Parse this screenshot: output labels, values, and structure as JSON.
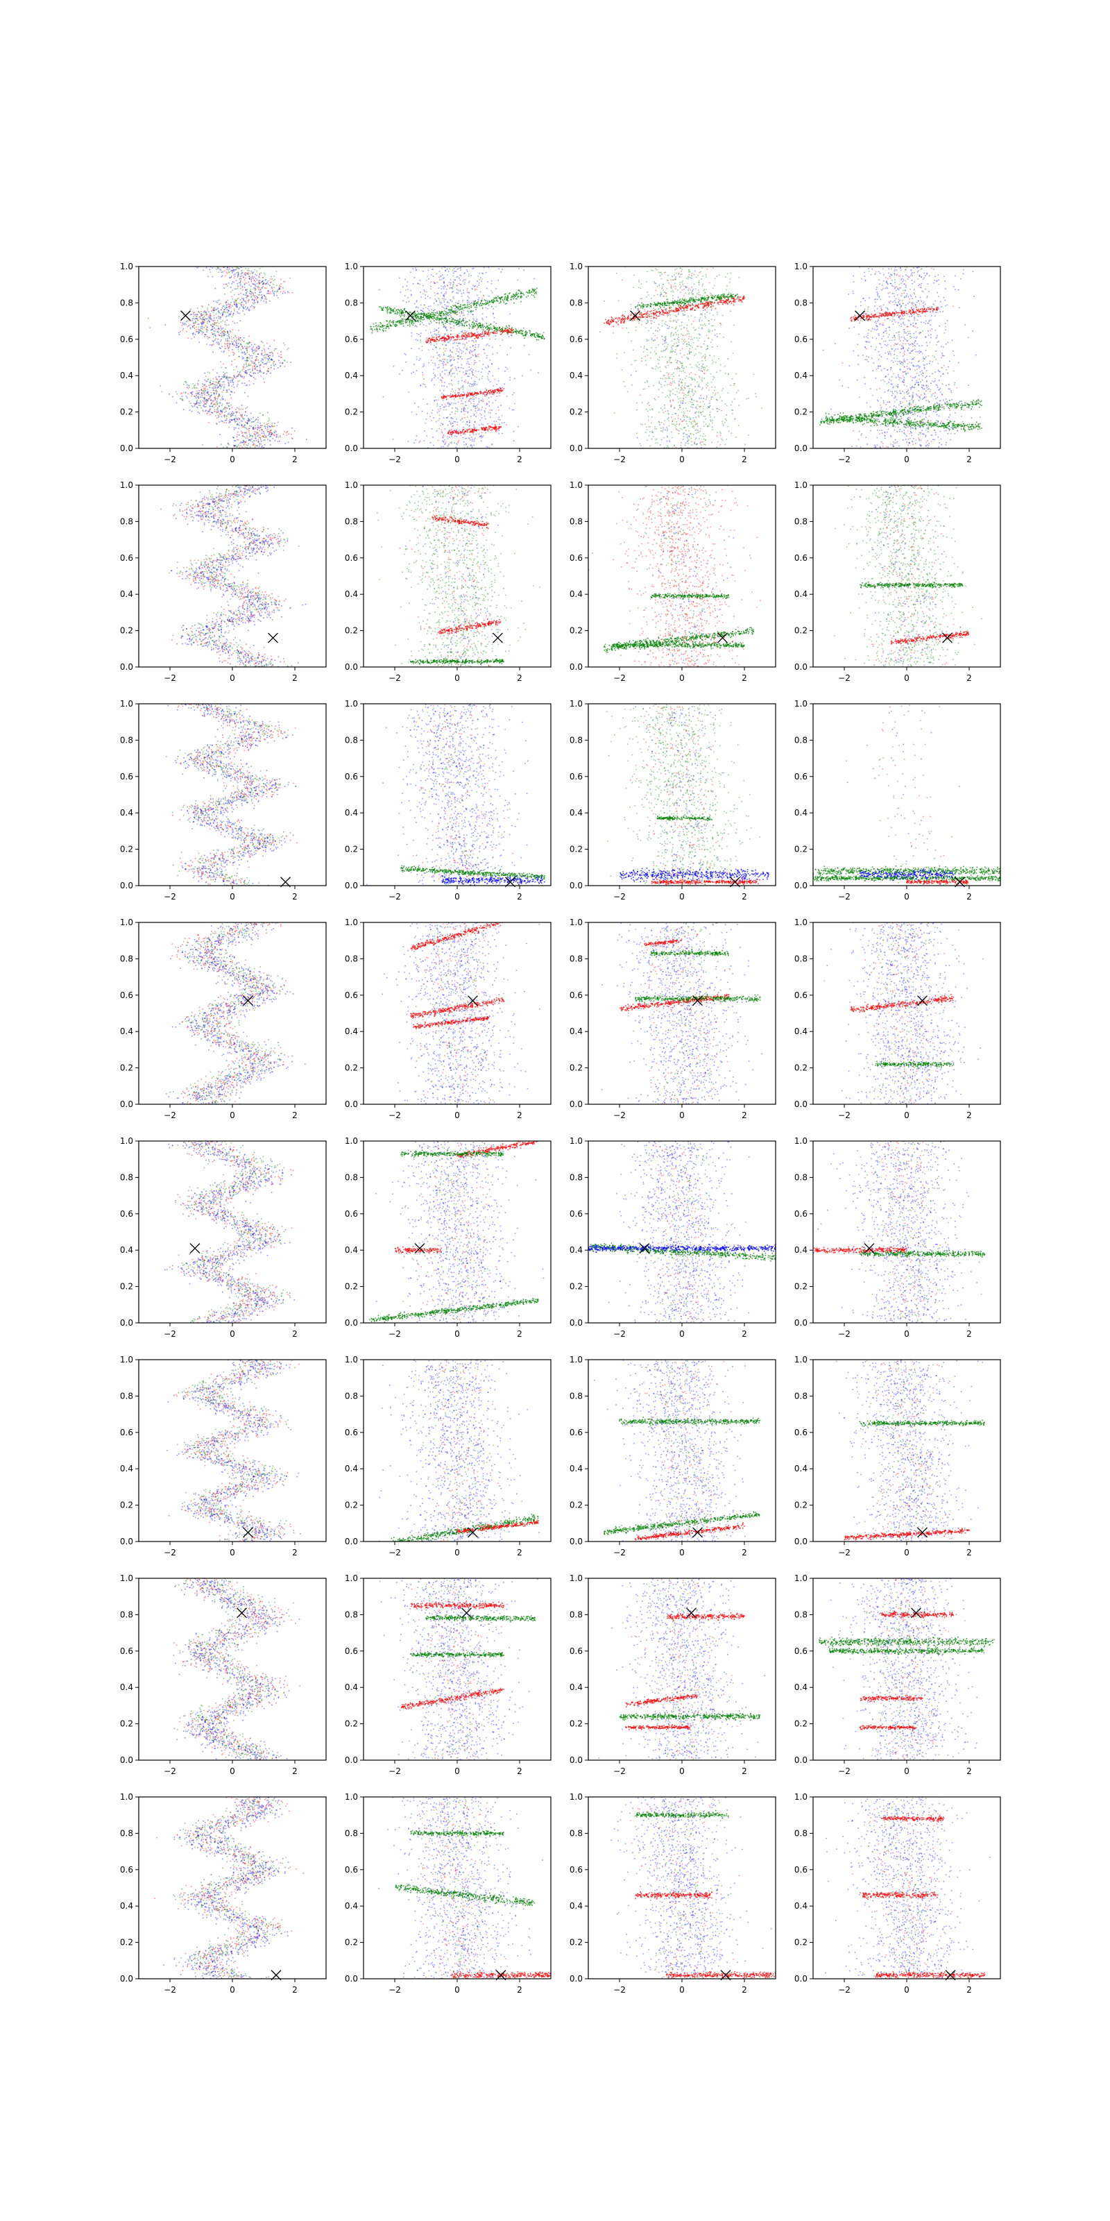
{
  "chart_data": {
    "type": "scatter",
    "grid": "8x4",
    "axes_grid": false,
    "legend": "none",
    "xlim": [
      -3,
      3
    ],
    "ylim": [
      0,
      1
    ],
    "x_ticks": [
      -2,
      0,
      2
    ],
    "y_ticks": [
      0.0,
      0.2,
      0.4,
      0.6,
      0.8,
      1.0
    ],
    "x_tick_labels": [
      "−2",
      "0",
      "2"
    ],
    "y_tick_labels": [
      "0.0",
      "0.2",
      "0.4",
      "0.6",
      "0.8",
      "1.0"
    ],
    "colors": {
      "red": "#ff0000",
      "green": "#008000",
      "blue": "#0000ff",
      "marker": "#000000"
    },
    "marker_symbol": "x",
    "row_markers": [
      {
        "x": -1.5,
        "y": 0.73
      },
      {
        "x": 1.3,
        "y": 0.16
      },
      {
        "x": 1.7,
        "y": 0.02
      },
      {
        "x": 0.5,
        "y": 0.57
      },
      {
        "x": -1.2,
        "y": 0.41
      },
      {
        "x": 0.5,
        "y": 0.05
      },
      {
        "x": 0.3,
        "y": 0.81
      },
      {
        "x": 1.4,
        "y": 0.02
      }
    ],
    "panels": [
      {
        "row": 0,
        "col": 0,
        "style": "wave",
        "dominant": "blue",
        "bands": []
      },
      {
        "row": 0,
        "col": 1,
        "style": "bands",
        "dominant": "blue",
        "bands": [
          {
            "color": "green",
            "y": 0.76,
            "x0": -2.8,
            "x1": 2.6,
            "slope": 0.04,
            "width": 0.025
          },
          {
            "color": "green",
            "y": 0.69,
            "x0": -2.5,
            "x1": 2.8,
            "slope": -0.03,
            "width": 0.02
          },
          {
            "color": "red",
            "y": 0.62,
            "x0": -1.0,
            "x1": 1.8,
            "slope": 0.02,
            "width": 0.015
          },
          {
            "color": "red",
            "y": 0.3,
            "x0": -0.5,
            "x1": 1.5,
            "slope": 0.02,
            "width": 0.012
          },
          {
            "color": "red",
            "y": 0.1,
            "x0": -0.3,
            "x1": 1.4,
            "slope": 0.02,
            "width": 0.012
          }
        ]
      },
      {
        "row": 0,
        "col": 2,
        "style": "bands",
        "dominant": "green",
        "bands": [
          {
            "color": "red",
            "y": 0.76,
            "x0": -2.5,
            "x1": 2.0,
            "slope": 0.03,
            "width": 0.02
          },
          {
            "color": "green",
            "y": 0.81,
            "x0": -1.5,
            "x1": 1.8,
            "slope": 0.02,
            "width": 0.015
          }
        ]
      },
      {
        "row": 0,
        "col": 3,
        "style": "bands",
        "dominant": "blue",
        "bands": [
          {
            "color": "red",
            "y": 0.74,
            "x0": -1.8,
            "x1": 1.0,
            "slope": 0.02,
            "width": 0.015
          },
          {
            "color": "green",
            "y": 0.2,
            "x0": -2.8,
            "x1": 2.4,
            "slope": 0.02,
            "width": 0.02
          },
          {
            "color": "green",
            "y": 0.14,
            "x0": -2.6,
            "x1": 2.4,
            "slope": -0.01,
            "width": 0.02
          }
        ]
      },
      {
        "row": 1,
        "col": 0,
        "style": "wave",
        "dominant": "blue",
        "bands": []
      },
      {
        "row": 1,
        "col": 1,
        "style": "bands",
        "dominant": "green",
        "bands": [
          {
            "color": "red",
            "y": 0.8,
            "x0": -0.8,
            "x1": 1.0,
            "slope": -0.02,
            "width": 0.015
          },
          {
            "color": "red",
            "y": 0.22,
            "x0": -0.6,
            "x1": 1.4,
            "slope": 0.03,
            "width": 0.015
          },
          {
            "color": "green",
            "y": 0.03,
            "x0": -1.5,
            "x1": 1.5,
            "slope": 0.0,
            "width": 0.012
          }
        ]
      },
      {
        "row": 1,
        "col": 2,
        "style": "bands",
        "dominant": "red",
        "bands": [
          {
            "color": "green",
            "y": 0.39,
            "x0": -1.0,
            "x1": 1.5,
            "slope": 0.0,
            "width": 0.012
          },
          {
            "color": "green",
            "y": 0.15,
            "x0": -2.5,
            "x1": 2.3,
            "slope": 0.02,
            "width": 0.02
          },
          {
            "color": "green",
            "y": 0.12,
            "x0": -2.2,
            "x1": 2.0,
            "slope": 0.0,
            "width": 0.015
          }
        ]
      },
      {
        "row": 1,
        "col": 3,
        "style": "bands",
        "dominant": "green",
        "bands": [
          {
            "color": "red",
            "y": 0.16,
            "x0": -0.5,
            "x1": 2.0,
            "slope": 0.02,
            "width": 0.015
          },
          {
            "color": "green",
            "y": 0.45,
            "x0": -1.5,
            "x1": 1.8,
            "slope": 0.0,
            "width": 0.012
          }
        ]
      },
      {
        "row": 2,
        "col": 0,
        "style": "wave",
        "dominant": "blue",
        "bands": []
      },
      {
        "row": 2,
        "col": 1,
        "style": "bands",
        "dominant": "blue",
        "bands": [
          {
            "color": "green",
            "y": 0.07,
            "x0": -1.8,
            "x1": 2.8,
            "slope": -0.01,
            "width": 0.015
          },
          {
            "color": "blue",
            "y": 0.03,
            "x0": -0.5,
            "x1": 2.8,
            "slope": 0.0,
            "width": 0.02
          }
        ]
      },
      {
        "row": 2,
        "col": 2,
        "style": "bands",
        "dominant": "green",
        "bands": [
          {
            "color": "blue",
            "y": 0.06,
            "x0": -2.0,
            "x1": 2.8,
            "slope": 0.0,
            "width": 0.03
          },
          {
            "color": "red",
            "y": 0.02,
            "x0": -1.0,
            "x1": 2.5,
            "slope": 0.0,
            "width": 0.01
          },
          {
            "color": "green",
            "y": 0.37,
            "x0": -0.8,
            "x1": 1.0,
            "slope": 0.0,
            "width": 0.01
          }
        ]
      },
      {
        "row": 2,
        "col": 3,
        "style": "bands",
        "dominant": "none",
        "bands": [
          {
            "color": "green",
            "y": 0.08,
            "x0": -3.0,
            "x1": 3.0,
            "slope": 0.0,
            "width": 0.02
          },
          {
            "color": "green",
            "y": 0.04,
            "x0": -3.0,
            "x1": 3.0,
            "slope": 0.0,
            "width": 0.012
          },
          {
            "color": "blue",
            "y": 0.06,
            "x0": -1.5,
            "x1": 1.5,
            "slope": 0.0,
            "width": 0.025
          },
          {
            "color": "red",
            "y": 0.02,
            "x0": 0.0,
            "x1": 2.0,
            "slope": 0.0,
            "width": 0.01
          }
        ]
      },
      {
        "row": 3,
        "col": 0,
        "style": "wave",
        "dominant": "blue",
        "bands": []
      },
      {
        "row": 3,
        "col": 1,
        "style": "bands",
        "dominant": "blue",
        "bands": [
          {
            "color": "red",
            "y": 0.93,
            "x0": -1.5,
            "x1": 1.5,
            "slope": 0.05,
            "width": 0.015
          },
          {
            "color": "red",
            "y": 0.53,
            "x0": -1.5,
            "x1": 1.5,
            "slope": 0.03,
            "width": 0.015
          },
          {
            "color": "red",
            "y": 0.45,
            "x0": -1.4,
            "x1": 1.0,
            "slope": 0.02,
            "width": 0.012
          }
        ]
      },
      {
        "row": 3,
        "col": 2,
        "style": "bands",
        "dominant": "blue",
        "bands": [
          {
            "color": "red",
            "y": 0.56,
            "x0": -2.0,
            "x1": 1.5,
            "slope": 0.02,
            "width": 0.015
          },
          {
            "color": "green",
            "y": 0.58,
            "x0": -1.5,
            "x1": 2.5,
            "slope": 0.0,
            "width": 0.015
          },
          {
            "color": "green",
            "y": 0.83,
            "x0": -1.0,
            "x1": 1.5,
            "slope": 0.0,
            "width": 0.012
          },
          {
            "color": "red",
            "y": 0.89,
            "x0": -1.2,
            "x1": 0.0,
            "slope": 0.02,
            "width": 0.01
          }
        ]
      },
      {
        "row": 3,
        "col": 3,
        "style": "bands",
        "dominant": "blue",
        "bands": [
          {
            "color": "red",
            "y": 0.55,
            "x0": -1.8,
            "x1": 1.5,
            "slope": 0.02,
            "width": 0.015
          },
          {
            "color": "green",
            "y": 0.22,
            "x0": -1.0,
            "x1": 1.5,
            "slope": 0.0,
            "width": 0.012
          }
        ]
      },
      {
        "row": 4,
        "col": 0,
        "style": "wave",
        "dominant": "blue",
        "bands": []
      },
      {
        "row": 4,
        "col": 1,
        "style": "bands",
        "dominant": "blue",
        "bands": [
          {
            "color": "red",
            "y": 0.96,
            "x0": 0.0,
            "x1": 2.6,
            "slope": 0.03,
            "width": 0.015
          },
          {
            "color": "green",
            "y": 0.93,
            "x0": -1.8,
            "x1": 1.5,
            "slope": 0.0,
            "width": 0.012
          },
          {
            "color": "red",
            "y": 0.4,
            "x0": -2.0,
            "x1": -0.5,
            "slope": 0.0,
            "width": 0.015
          },
          {
            "color": "green",
            "y": 0.07,
            "x0": -2.8,
            "x1": 2.6,
            "slope": 0.02,
            "width": 0.015
          }
        ]
      },
      {
        "row": 4,
        "col": 2,
        "style": "bands",
        "dominant": "blue",
        "bands": [
          {
            "color": "green",
            "y": 0.39,
            "x0": -3.0,
            "x1": 3.0,
            "slope": -0.01,
            "width": 0.02
          },
          {
            "color": "blue",
            "y": 0.41,
            "x0": -3.0,
            "x1": 3.0,
            "slope": 0.0,
            "width": 0.015
          }
        ]
      },
      {
        "row": 4,
        "col": 3,
        "style": "bands",
        "dominant": "blue",
        "bands": [
          {
            "color": "red",
            "y": 0.4,
            "x0": -3.0,
            "x1": 0.0,
            "slope": 0.0,
            "width": 0.015
          },
          {
            "color": "green",
            "y": 0.38,
            "x0": -1.5,
            "x1": 2.5,
            "slope": 0.0,
            "width": 0.015
          }
        ]
      },
      {
        "row": 5,
        "col": 0,
        "style": "wave",
        "dominant": "blue",
        "bands": []
      },
      {
        "row": 5,
        "col": 1,
        "style": "bands",
        "dominant": "blue",
        "bands": [
          {
            "color": "green",
            "y": 0.05,
            "x0": -2.8,
            "x1": 2.6,
            "slope": 0.03,
            "width": 0.02
          },
          {
            "color": "red",
            "y": 0.08,
            "x0": 0.0,
            "x1": 2.6,
            "slope": 0.02,
            "width": 0.012
          }
        ]
      },
      {
        "row": 5,
        "col": 2,
        "style": "bands",
        "dominant": "blue",
        "bands": [
          {
            "color": "green",
            "y": 0.66,
            "x0": -2.0,
            "x1": 2.5,
            "slope": 0.0,
            "width": 0.015
          },
          {
            "color": "green",
            "y": 0.1,
            "x0": -2.5,
            "x1": 2.5,
            "slope": 0.02,
            "width": 0.015
          },
          {
            "color": "red",
            "y": 0.05,
            "x0": -1.5,
            "x1": 2.0,
            "slope": 0.02,
            "width": 0.012
          }
        ]
      },
      {
        "row": 5,
        "col": 3,
        "style": "bands",
        "dominant": "blue",
        "bands": [
          {
            "color": "red",
            "y": 0.04,
            "x0": -2.0,
            "x1": 2.0,
            "slope": 0.01,
            "width": 0.012
          },
          {
            "color": "green",
            "y": 0.65,
            "x0": -1.5,
            "x1": 2.5,
            "slope": 0.0,
            "width": 0.012
          }
        ]
      },
      {
        "row": 6,
        "col": 0,
        "style": "wave",
        "dominant": "blue",
        "bands": []
      },
      {
        "row": 6,
        "col": 1,
        "style": "bands",
        "dominant": "blue",
        "bands": [
          {
            "color": "red",
            "y": 0.85,
            "x0": -1.5,
            "x1": 1.5,
            "slope": 0.0,
            "width": 0.015
          },
          {
            "color": "green",
            "y": 0.78,
            "x0": -1.0,
            "x1": 2.5,
            "slope": 0.0,
            "width": 0.015
          },
          {
            "color": "red",
            "y": 0.34,
            "x0": -1.8,
            "x1": 1.5,
            "slope": 0.03,
            "width": 0.015
          },
          {
            "color": "green",
            "y": 0.58,
            "x0": -1.5,
            "x1": 1.5,
            "slope": 0.0,
            "width": 0.012
          }
        ]
      },
      {
        "row": 6,
        "col": 2,
        "style": "bands",
        "dominant": "blue",
        "bands": [
          {
            "color": "red",
            "y": 0.79,
            "x0": -0.5,
            "x1": 2.0,
            "slope": 0.0,
            "width": 0.015
          },
          {
            "color": "red",
            "y": 0.33,
            "x0": -1.8,
            "x1": 0.5,
            "slope": 0.02,
            "width": 0.012
          },
          {
            "color": "green",
            "y": 0.24,
            "x0": -2.0,
            "x1": 2.5,
            "slope": 0.0,
            "width": 0.015
          },
          {
            "color": "red",
            "y": 0.18,
            "x0": -1.8,
            "x1": 0.3,
            "slope": 0.0,
            "width": 0.01
          }
        ]
      },
      {
        "row": 6,
        "col": 3,
        "style": "bands",
        "dominant": "blue",
        "bands": [
          {
            "color": "red",
            "y": 0.8,
            "x0": -0.8,
            "x1": 1.5,
            "slope": 0.0,
            "width": 0.015
          },
          {
            "color": "green",
            "y": 0.65,
            "x0": -2.8,
            "x1": 2.8,
            "slope": 0.0,
            "width": 0.02
          },
          {
            "color": "green",
            "y": 0.6,
            "x0": -2.5,
            "x1": 2.5,
            "slope": 0.0,
            "width": 0.015
          },
          {
            "color": "red",
            "y": 0.34,
            "x0": -1.5,
            "x1": 0.5,
            "slope": 0.0,
            "width": 0.012
          },
          {
            "color": "red",
            "y": 0.18,
            "x0": -1.5,
            "x1": 0.3,
            "slope": 0.0,
            "width": 0.01
          }
        ]
      },
      {
        "row": 7,
        "col": 0,
        "style": "wave",
        "dominant": "blue",
        "bands": []
      },
      {
        "row": 7,
        "col": 1,
        "style": "bands",
        "dominant": "blue",
        "bands": [
          {
            "color": "green",
            "y": 0.46,
            "x0": -2.0,
            "x1": 2.5,
            "slope": -0.02,
            "width": 0.02
          },
          {
            "color": "red",
            "y": 0.02,
            "x0": -0.2,
            "x1": 3.0,
            "slope": 0.0,
            "width": 0.015
          },
          {
            "color": "green",
            "y": 0.8,
            "x0": -1.5,
            "x1": 1.5,
            "slope": 0.0,
            "width": 0.012
          }
        ]
      },
      {
        "row": 7,
        "col": 2,
        "style": "bands",
        "dominant": "blue",
        "bands": [
          {
            "color": "red",
            "y": 0.46,
            "x0": -1.5,
            "x1": 1.0,
            "slope": 0.0,
            "width": 0.015
          },
          {
            "color": "red",
            "y": 0.02,
            "x0": -0.5,
            "x1": 3.0,
            "slope": 0.0,
            "width": 0.015
          },
          {
            "color": "green",
            "y": 0.9,
            "x0": -1.5,
            "x1": 1.5,
            "slope": 0.0,
            "width": 0.012
          }
        ]
      },
      {
        "row": 7,
        "col": 3,
        "style": "bands",
        "dominant": "blue",
        "bands": [
          {
            "color": "red",
            "y": 0.46,
            "x0": -1.5,
            "x1": 1.0,
            "slope": 0.0,
            "width": 0.015
          },
          {
            "color": "red",
            "y": 0.02,
            "x0": -1.0,
            "x1": 2.5,
            "slope": 0.0,
            "width": 0.015
          },
          {
            "color": "red",
            "y": 0.88,
            "x0": -0.8,
            "x1": 1.2,
            "slope": 0.0,
            "width": 0.012
          }
        ]
      }
    ]
  }
}
